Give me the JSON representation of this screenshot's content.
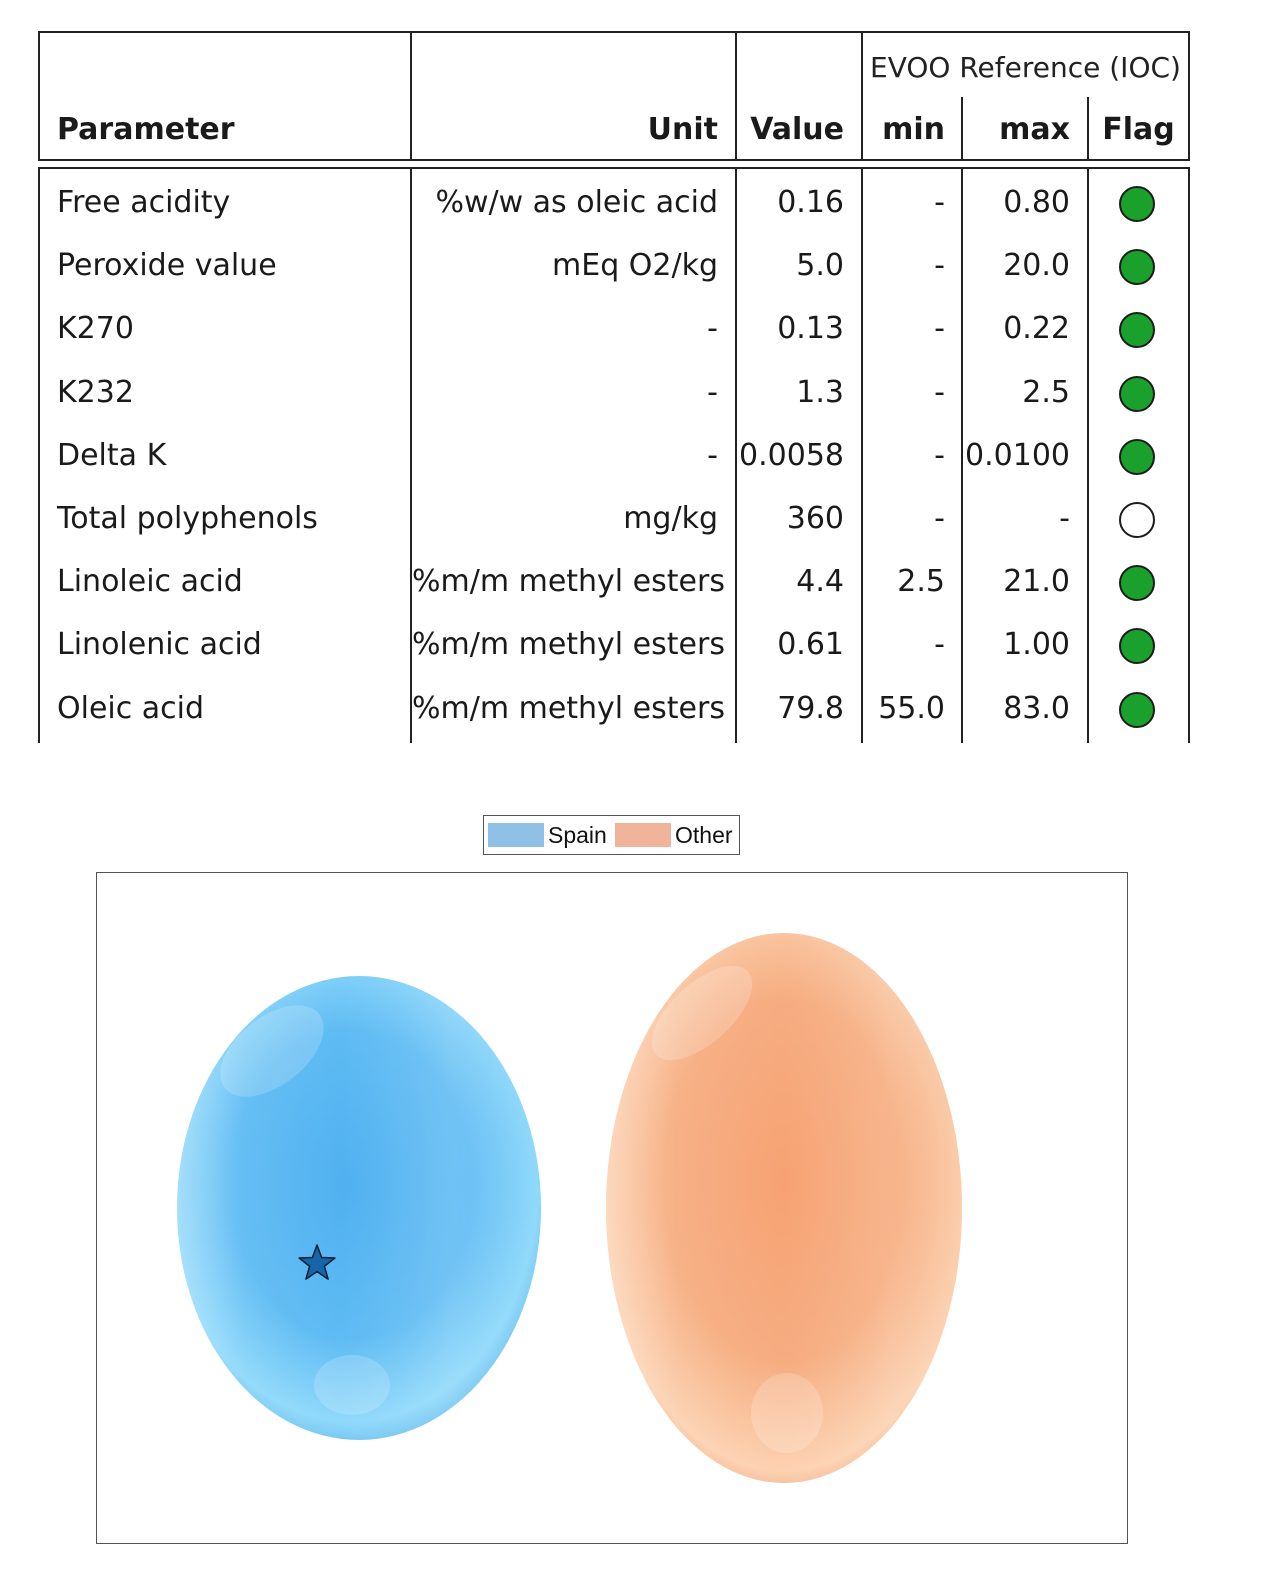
{
  "table": {
    "group_header": "EVOO Reference (IOC)",
    "headers": {
      "parameter": "Parameter",
      "unit": "Unit",
      "value": "Value",
      "min": "min",
      "max": "max",
      "flag": "Flag"
    },
    "rows": [
      {
        "parameter": "Free acidity",
        "unit": "%w/w as oleic acid",
        "value": "0.16",
        "min": "-",
        "max": "0.80",
        "flag": "within-limits"
      },
      {
        "parameter": "Peroxide value",
        "unit": "mEq O2/kg",
        "value": "5.0",
        "min": "-",
        "max": "20.0",
        "flag": "within-limits"
      },
      {
        "parameter": "K270",
        "unit": "-",
        "value": "0.13",
        "min": "-",
        "max": "0.22",
        "flag": "within-limits"
      },
      {
        "parameter": "K232",
        "unit": "-",
        "value": "1.3",
        "min": "-",
        "max": "2.5",
        "flag": "within-limits"
      },
      {
        "parameter": "Delta K",
        "unit": "-",
        "value": "0.0058",
        "min": "-",
        "max": "0.0100",
        "flag": "within-limits"
      },
      {
        "parameter": "Total polyphenols",
        "unit": "mg/kg",
        "value": "360",
        "min": "-",
        "max": "-",
        "flag": "no-reference"
      },
      {
        "parameter": "Linoleic acid",
        "unit": "%m/m methyl esters",
        "value": "4.4",
        "min": "2.5",
        "max": "21.0",
        "flag": "within-limits"
      },
      {
        "parameter": "Linolenic acid",
        "unit": "%m/m methyl esters",
        "value": "0.61",
        "min": "-",
        "max": "1.00",
        "flag": "within-limits"
      },
      {
        "parameter": "Oleic acid",
        "unit": "%m/m methyl esters",
        "value": "79.8",
        "min": "55.0",
        "max": "83.0",
        "flag": "within-limits"
      }
    ],
    "flag_colors": {
      "within-limits": "#1aa12c",
      "no-reference": "#ffffff"
    }
  },
  "plot": {
    "legend": [
      {
        "label": "Spain",
        "color": "#8fc0e6"
      },
      {
        "label": "Other",
        "color": "#f0b49a"
      }
    ],
    "clusters": [
      {
        "name": "Spain",
        "color": "#55b6f2",
        "highlight": "#a8e8ff"
      },
      {
        "name": "Other",
        "color": "#f6a878",
        "highlight": "#ffe0c8"
      }
    ],
    "sample_marker": {
      "shape": "star-icon",
      "color": "#1565a8",
      "cluster": "Spain"
    }
  }
}
